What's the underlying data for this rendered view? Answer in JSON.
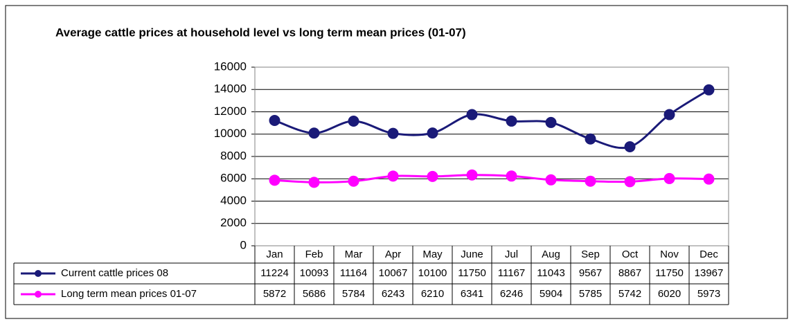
{
  "chart_data": {
    "type": "line",
    "title": "Average cattle prices at household level vs long term mean prices (01-07)",
    "categories": [
      "Jan",
      "Feb",
      "Mar",
      "Apr",
      "May",
      "June",
      "Jul",
      "Aug",
      "Sep",
      "Oct",
      "Nov",
      "Dec"
    ],
    "series": [
      {
        "name": "Current cattle prices 08",
        "color": "#1a1a78",
        "values": [
          11224,
          10093,
          11164,
          10067,
          10100,
          11750,
          11167,
          11043,
          9567,
          8867,
          11750,
          13967
        ]
      },
      {
        "name": "Long term mean prices 01-07",
        "color": "#ff00ff",
        "values": [
          5872,
          5686,
          5784,
          6243,
          6210,
          6341,
          6246,
          5904,
          5785,
          5742,
          6020,
          5973
        ]
      }
    ],
    "ylim": [
      0,
      16000
    ],
    "yticks": [
      0,
      2000,
      4000,
      6000,
      8000,
      10000,
      12000,
      14000,
      16000
    ],
    "grid": true,
    "data_table": true
  }
}
